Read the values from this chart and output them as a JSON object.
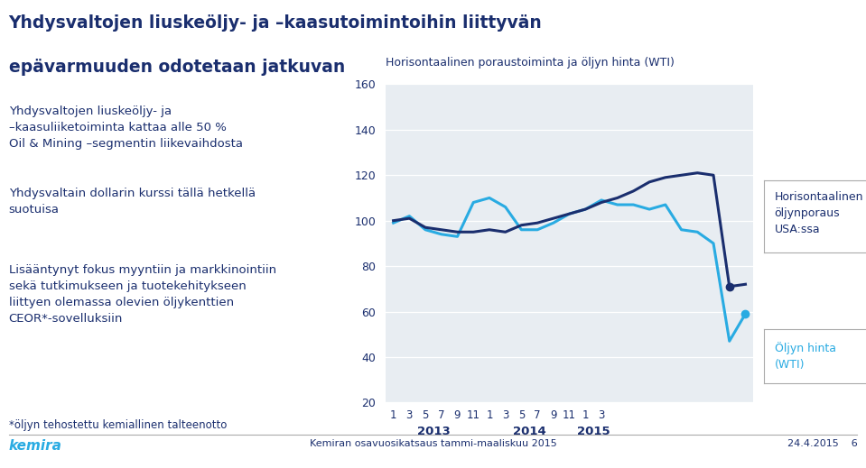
{
  "title_line1": "Yhdysvaltojen liuskeöljy- ja –kaasutoimintoihin liittyvän",
  "title_line2": "epävarmuuden odotetaan jatkuvan",
  "chart_title": "Horisontaalinen poraustoiminta ja öljyn hinta (WTI)",
  "bullet_points": [
    "Yhdysvaltojen liuskeöljy- ja\n–kaasuliiketoiminta kattaa alle 50 %\nOil & Mining –segmentin liikevaihdosta",
    "Yhdysvaltain dollarin kurssi tällä hetkellä\nsuotuisa",
    "Lisääntynyt fokus myyntiin ja markkinointiin\nsekä tutkimukseen ja tuotekehitykseen\nliittyen olemassa olevien öljykenttien\nCEOR*-sovelluksiin"
  ],
  "footnote": "*öljyn tehostettu kemiallinen talteenotto",
  "footer_left": "kemira",
  "footer_center": "Kemiran osavuosikatsaus tammi-maaliskuu 2015",
  "footer_right": "24.4.2015    6",
  "legend_label1": "Horisontaalinen\nöljynporaus\nUSA:ssa",
  "legend_label2": "Öljyn hinta\n(WTI)",
  "color_dark": "#1a2e6e",
  "color_light": "#29abe2",
  "color_bg_chart": "#e8edf2",
  "color_bg_main": "#ffffff",
  "color_title": "#1a2e6e",
  "color_kemira": "#29abe2",
  "ylim": [
    20,
    160
  ],
  "yticks": [
    20,
    40,
    60,
    80,
    100,
    120,
    140,
    160
  ],
  "x_labels": [
    "1",
    "3",
    "5",
    "7",
    "9",
    "11",
    "1",
    "3",
    "5",
    "7",
    "9",
    "11",
    "1",
    "3"
  ],
  "year_labels": [
    "2013",
    "2014",
    "2015"
  ],
  "year_centers": [
    2.5,
    8.5,
    12.5
  ],
  "dark_line": [
    100,
    101,
    97,
    96,
    95,
    95,
    96,
    95,
    98,
    99,
    101,
    103,
    105,
    108,
    110,
    113,
    117,
    119,
    120,
    121,
    120,
    71,
    72
  ],
  "light_line": [
    99,
    102,
    96,
    94,
    93,
    108,
    110,
    106,
    96,
    96,
    99,
    103,
    105,
    109,
    107,
    107,
    105,
    107,
    96,
    95,
    90,
    47,
    59
  ]
}
